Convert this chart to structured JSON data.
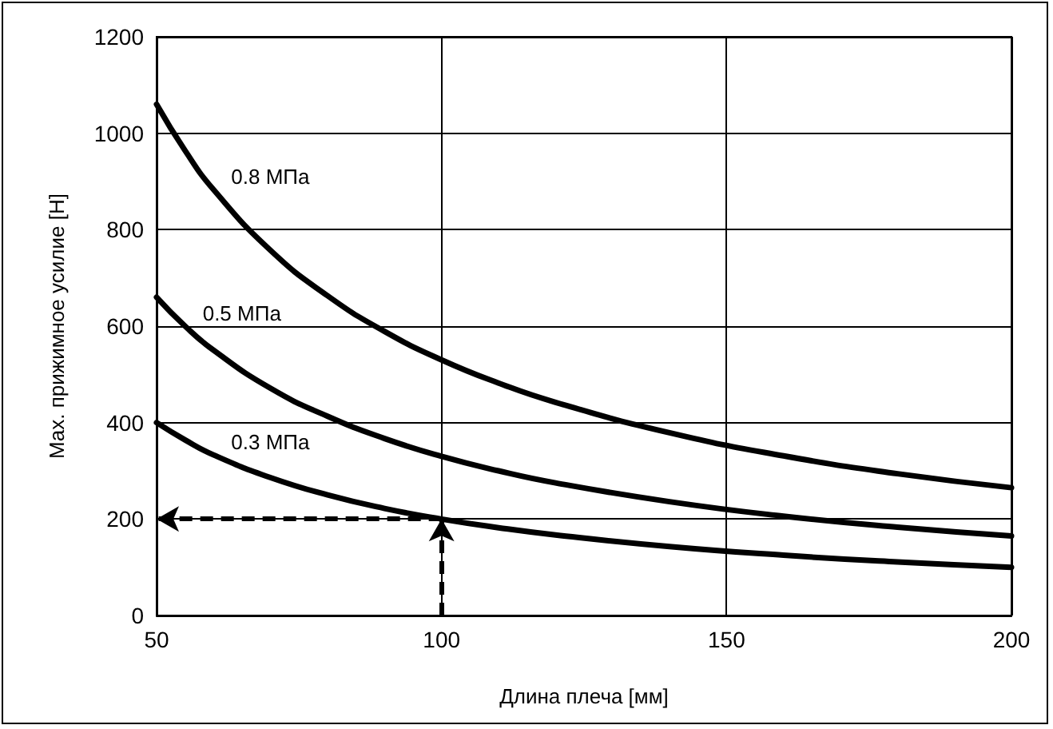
{
  "chart_data": {
    "type": "line",
    "xlabel": "Длина плеча [мм]",
    "ylabel": "Max. прижимное усилие [Н]",
    "x": [
      50,
      55,
      60,
      70,
      80,
      90,
      100,
      110,
      120,
      140,
      160,
      180,
      200
    ],
    "series": [
      {
        "name": "0.8 МПа",
        "color": "#000000",
        "values": [
          1060,
          964,
          883,
          757,
          663,
          589,
          530,
          482,
          442,
          379,
          331,
          294,
          265
        ]
      },
      {
        "name": "0.5 МПа",
        "color": "#000000",
        "values": [
          660,
          600,
          550,
          471,
          413,
          367,
          330,
          300,
          275,
          236,
          206,
          183,
          165
        ]
      },
      {
        "name": "0.3 МПа",
        "color": "#000000",
        "values": [
          400,
          364,
          333,
          286,
          250,
          222,
          200,
          182,
          167,
          143,
          125,
          111,
          100
        ]
      }
    ],
    "xlim": [
      50,
      200
    ],
    "xticks": [
      50,
      100,
      150,
      200
    ],
    "ylim": [
      0,
      1200
    ],
    "yticks": [
      0,
      200,
      400,
      600,
      800,
      1000,
      1200
    ],
    "grid": true,
    "legend": false,
    "marker": "none",
    "line_style": "solid"
  }
}
